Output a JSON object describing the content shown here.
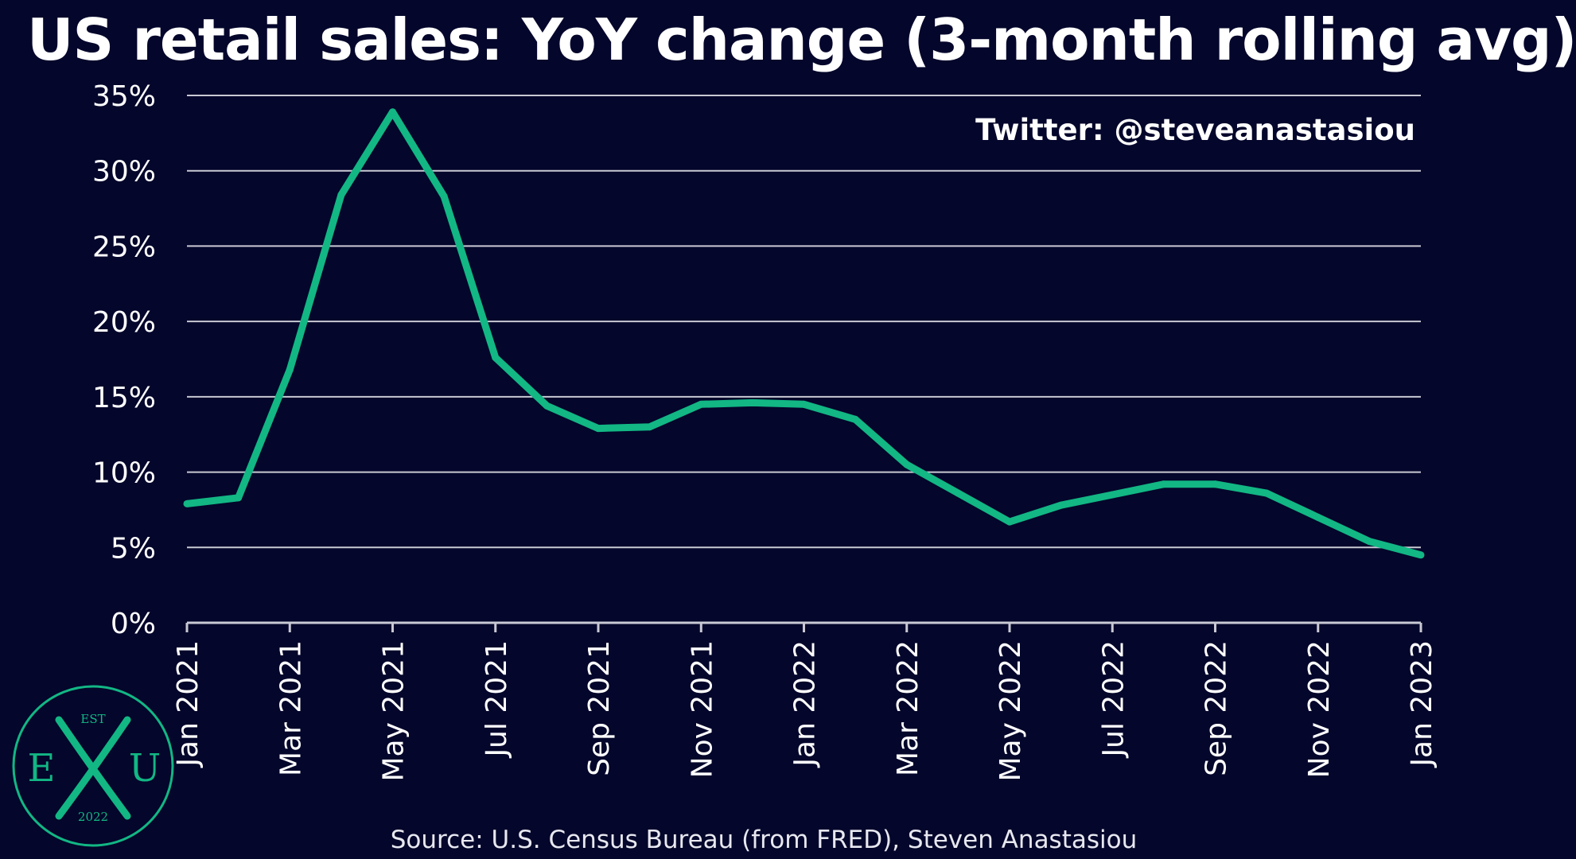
{
  "title": "US retail sales: YoY change (3-month rolling avg)",
  "watermark": "Twitter: @steveanastasiou",
  "source": "Source: U.S. Census Bureau (from FRED), Steven Anastasiou",
  "logo": {
    "top": "EST",
    "left": "E",
    "right": "U",
    "bottom": "2022"
  },
  "colors": {
    "background": "#04062b",
    "line": "#12b784",
    "grid": "#c9c9d4",
    "text": "#ffffff",
    "logo": "#12b784"
  },
  "chart_data": {
    "type": "line",
    "title": "US retail sales: YoY change (3-month rolling avg)",
    "xlabel": "",
    "ylabel": "",
    "ylim": [
      0,
      35
    ],
    "y_ticks": [
      "0%",
      "5%",
      "10%",
      "15%",
      "20%",
      "25%",
      "30%",
      "35%"
    ],
    "y_tick_values": [
      0,
      5,
      10,
      15,
      20,
      25,
      30,
      35
    ],
    "grid": true,
    "x_tick_labels": [
      "Jan 2021",
      "Mar 2021",
      "May 2021",
      "Jul 2021",
      "Sep 2021",
      "Nov 2021",
      "Jan 2022",
      "Mar 2022",
      "May 2022",
      "Jul 2022",
      "Sep 2022",
      "Nov 2022",
      "Jan 2023"
    ],
    "x": [
      "Jan 2021",
      "Feb 2021",
      "Mar 2021",
      "Apr 2021",
      "May 2021",
      "Jun 2021",
      "Jul 2021",
      "Aug 2021",
      "Sep 2021",
      "Oct 2021",
      "Nov 2021",
      "Dec 2021",
      "Jan 2022",
      "Feb 2022",
      "Mar 2022",
      "Apr 2022",
      "May 2022",
      "Jun 2022",
      "Jul 2022",
      "Aug 2022",
      "Sep 2022",
      "Oct 2022",
      "Nov 2022",
      "Dec 2022",
      "Jan 2023"
    ],
    "series": [
      {
        "values": [
          7.9,
          8.3,
          16.8,
          28.4,
          33.9,
          28.3,
          17.6,
          14.4,
          12.9,
          13.0,
          14.5,
          14.6,
          14.5,
          13.5,
          10.5,
          8.6,
          6.7,
          7.8,
          8.5,
          9.2,
          9.2,
          8.6,
          7.0,
          5.4,
          4.5
        ]
      }
    ]
  }
}
